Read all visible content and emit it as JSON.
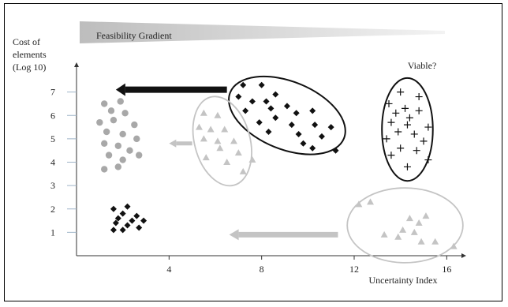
{
  "chart_data": {
    "type": "scatter",
    "title": "Feasibility Gradient",
    "ylabel": [
      "Cost of",
      "elements",
      "(Log 10)"
    ],
    "xlabel": "Uncertainty Index",
    "x_ticks": [
      4,
      8,
      12,
      16
    ],
    "y_ticks": [
      1,
      2,
      3,
      4,
      5,
      6,
      7
    ],
    "xlim": [
      0,
      16.5
    ],
    "ylim": [
      0,
      8
    ],
    "annotations": [
      "Viable?"
    ],
    "colors": {
      "black": "#111111",
      "gray": "#a8a8a8",
      "lightgray": "#c4c4c4",
      "gradient_dark": "#bdbdbd",
      "gradient_light": "#f3f3f3"
    },
    "series": [
      {
        "marker": "circle",
        "color": "gray",
        "points": [
          [
            1.2,
            6.5
          ],
          [
            1.9,
            6.6
          ],
          [
            1.5,
            6.2
          ],
          [
            2.1,
            6.1
          ],
          [
            1.0,
            5.7
          ],
          [
            1.6,
            5.8
          ],
          [
            2.5,
            5.6
          ],
          [
            1.3,
            5.3
          ],
          [
            2.0,
            5.2
          ],
          [
            2.6,
            5.0
          ],
          [
            1.2,
            4.8
          ],
          [
            1.8,
            4.7
          ],
          [
            2.3,
            4.5
          ],
          [
            1.4,
            4.3
          ],
          [
            2.7,
            4.3
          ],
          [
            2.0,
            4.1
          ],
          [
            1.2,
            3.7
          ],
          [
            1.8,
            3.8
          ]
        ]
      },
      {
        "marker": "diamond",
        "color": "black",
        "points": [
          [
            1.6,
            2.0
          ],
          [
            2.2,
            2.1
          ],
          [
            2.0,
            1.8
          ],
          [
            2.6,
            1.7
          ],
          [
            1.8,
            1.6
          ],
          [
            2.4,
            1.5
          ],
          [
            1.7,
            1.4
          ],
          [
            2.9,
            1.5
          ],
          [
            2.2,
            1.3
          ],
          [
            2.7,
            1.2
          ],
          [
            1.6,
            1.1
          ],
          [
            2.0,
            1.1
          ]
        ]
      },
      {
        "marker": "triangle",
        "color": "lightgray",
        "points": [
          [
            5.5,
            6.1
          ],
          [
            6.1,
            6.0
          ],
          [
            5.3,
            5.5
          ],
          [
            5.8,
            5.4
          ],
          [
            6.4,
            5.4
          ],
          [
            5.5,
            5.0
          ],
          [
            6.1,
            4.9
          ],
          [
            6.8,
            4.9
          ],
          [
            6.2,
            4.6
          ],
          [
            7.0,
            4.4
          ],
          [
            5.6,
            4.2
          ],
          [
            6.5,
            4.0
          ],
          [
            7.6,
            4.1
          ],
          [
            7.2,
            3.6
          ]
        ]
      },
      {
        "marker": "diamond",
        "color": "black",
        "points": [
          [
            7.2,
            7.3
          ],
          [
            8.0,
            7.3
          ],
          [
            8.6,
            6.9
          ],
          [
            7.0,
            6.8
          ],
          [
            7.6,
            6.6
          ],
          [
            8.2,
            6.6
          ],
          [
            9.1,
            6.4
          ],
          [
            7.3,
            6.2
          ],
          [
            8.4,
            6.3
          ],
          [
            9.5,
            6.1
          ],
          [
            10.2,
            6.2
          ],
          [
            8.6,
            5.9
          ],
          [
            7.9,
            5.7
          ],
          [
            9.3,
            5.6
          ],
          [
            10.3,
            5.6
          ],
          [
            11.0,
            5.5
          ],
          [
            8.3,
            5.3
          ],
          [
            9.6,
            5.2
          ],
          [
            10.6,
            5.1
          ],
          [
            9.8,
            4.8
          ],
          [
            10.2,
            4.6
          ],
          [
            11.2,
            4.5
          ]
        ]
      },
      {
        "marker": "plus",
        "color": "black",
        "points": [
          [
            14.0,
            7.0
          ],
          [
            14.8,
            6.8
          ],
          [
            13.5,
            6.5
          ],
          [
            14.2,
            6.3
          ],
          [
            14.8,
            6.2
          ],
          [
            13.8,
            6.1
          ],
          [
            14.4,
            5.9
          ],
          [
            13.6,
            5.7
          ],
          [
            14.3,
            5.6
          ],
          [
            15.2,
            5.5
          ],
          [
            13.9,
            5.3
          ],
          [
            14.6,
            5.2
          ],
          [
            13.4,
            5.0
          ],
          [
            15.0,
            4.9
          ],
          [
            14.0,
            4.6
          ],
          [
            14.7,
            4.5
          ],
          [
            13.6,
            4.3
          ],
          [
            15.2,
            4.1
          ],
          [
            14.3,
            3.8
          ]
        ]
      },
      {
        "marker": "triangle",
        "color": "lightgray",
        "points": [
          [
            12.2,
            2.2
          ],
          [
            12.7,
            2.3
          ],
          [
            14.4,
            1.6
          ],
          [
            15.1,
            1.7
          ],
          [
            14.8,
            1.4
          ],
          [
            14.1,
            1.1
          ],
          [
            14.6,
            1.0
          ],
          [
            13.3,
            0.9
          ],
          [
            13.9,
            0.8
          ],
          [
            14.9,
            0.6
          ],
          [
            15.5,
            0.6
          ],
          [
            16.3,
            0.4
          ]
        ]
      }
    ],
    "ellipses": [
      {
        "cx": 9.1,
        "cy": 6.0,
        "rx": 2.65,
        "ry": 1.45,
        "angle": 22,
        "color": "black"
      },
      {
        "cx": 14.3,
        "cy": 5.4,
        "rx": 1.1,
        "ry": 2.2,
        "angle": 0,
        "color": "black"
      },
      {
        "cx": 6.3,
        "cy": 4.9,
        "rx": 1.2,
        "ry": 1.95,
        "angle": -15,
        "color": "lightgray"
      },
      {
        "cx": 14.2,
        "cy": 1.3,
        "rx": 2.5,
        "ry": 1.6,
        "angle": 0,
        "color": "lightgray"
      }
    ],
    "arrows": [
      {
        "from": [
          6.5,
          7.1
        ],
        "to": [
          1.7,
          7.1
        ],
        "color": "black",
        "weight": "heavy"
      },
      {
        "from": [
          5.0,
          4.8
        ],
        "to": [
          4.0,
          4.8
        ],
        "color": "lightgray",
        "weight": "light"
      },
      {
        "from": [
          11.3,
          0.9
        ],
        "to": [
          6.6,
          0.9
        ],
        "color": "lightgray",
        "weight": "heavy"
      }
    ]
  }
}
